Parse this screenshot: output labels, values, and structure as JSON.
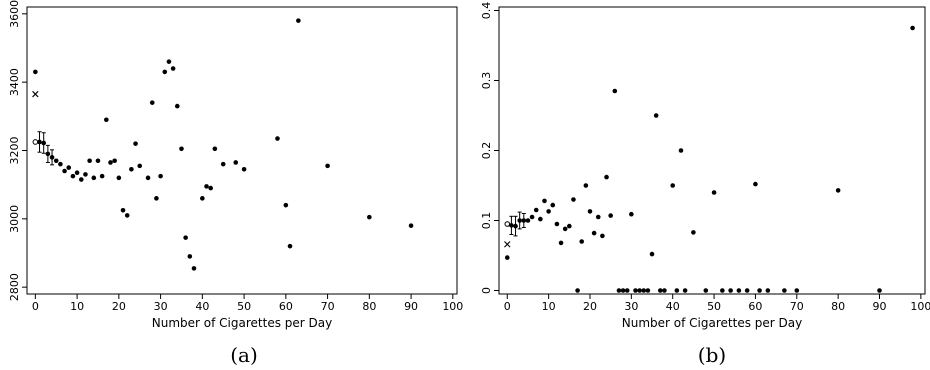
{
  "chart_data": [
    {
      "type": "scatter",
      "panel_label": "(a)",
      "xlabel": "Number of Cigarettes per Day",
      "ylabel": "",
      "xlim": [
        -2,
        101
      ],
      "ylim": [
        2780,
        3620
      ],
      "x_ticks": [
        0,
        10,
        20,
        30,
        40,
        50,
        60,
        70,
        80,
        90,
        100
      ],
      "y_ticks": [
        2800,
        3000,
        3200,
        3400,
        3600
      ],
      "points": [
        [
          0,
          3430
        ],
        [
          1,
          3225
        ],
        [
          2,
          3222
        ],
        [
          3,
          3190
        ],
        [
          4,
          3180
        ],
        [
          5,
          3170
        ],
        [
          6,
          3160
        ],
        [
          7,
          3140
        ],
        [
          8,
          3150
        ],
        [
          9,
          3125
        ],
        [
          10,
          3135
        ],
        [
          11,
          3115
        ],
        [
          12,
          3130
        ],
        [
          13,
          3170
        ],
        [
          14,
          3120
        ],
        [
          15,
          3170
        ],
        [
          16,
          3125
        ],
        [
          17,
          3290
        ],
        [
          18,
          3165
        ],
        [
          19,
          3170
        ],
        [
          20,
          3120
        ],
        [
          21,
          3025
        ],
        [
          22,
          3010
        ],
        [
          23,
          3145
        ],
        [
          24,
          3220
        ],
        [
          25,
          3155
        ],
        [
          27,
          3120
        ],
        [
          28,
          3340
        ],
        [
          29,
          3060
        ],
        [
          30,
          3125
        ],
        [
          31,
          3430
        ],
        [
          32,
          3460
        ],
        [
          33,
          3440
        ],
        [
          34,
          3330
        ],
        [
          35,
          3205
        ],
        [
          36,
          2945
        ],
        [
          37,
          2890
        ],
        [
          38,
          2855
        ],
        [
          40,
          3060
        ],
        [
          41,
          3095
        ],
        [
          42,
          3090
        ],
        [
          43,
          3205
        ],
        [
          45,
          3160
        ],
        [
          48,
          3165
        ],
        [
          50,
          3145
        ],
        [
          58,
          3235
        ],
        [
          60,
          3040
        ],
        [
          61,
          2920
        ],
        [
          63,
          3580
        ],
        [
          70,
          3155
        ],
        [
          80,
          3005
        ],
        [
          90,
          2980
        ]
      ],
      "open_points": [
        [
          0,
          3225
        ]
      ],
      "cross_points": [
        [
          0,
          3365
        ]
      ],
      "error_bars": [
        {
          "x": 1,
          "y": 3225,
          "low": 3195,
          "high": 3255
        },
        {
          "x": 2,
          "y": 3222,
          "low": 3192,
          "high": 3252
        },
        {
          "x": 3,
          "y": 3190,
          "low": 3165,
          "high": 3215
        },
        {
          "x": 4,
          "y": 3180,
          "low": 3158,
          "high": 3202
        }
      ]
    },
    {
      "type": "scatter",
      "panel_label": "(b)",
      "xlabel": "Number of Cigarettes per Day",
      "ylabel": "",
      "xlim": [
        -2,
        101
      ],
      "ylim": [
        -0.005,
        0.405
      ],
      "x_ticks": [
        0,
        10,
        20,
        30,
        40,
        50,
        60,
        70,
        80,
        90,
        100
      ],
      "y_ticks": [
        0,
        0.1,
        0.2,
        0.3,
        0.4
      ],
      "y_tick_labels": [
        "0",
        "0.1",
        "0.2",
        "0.3",
        "0.4"
      ],
      "points": [
        [
          0,
          0.047
        ],
        [
          1,
          0.093
        ],
        [
          2,
          0.092
        ],
        [
          3,
          0.1
        ],
        [
          4,
          0.1
        ],
        [
          5,
          0.1
        ],
        [
          6,
          0.105
        ],
        [
          7,
          0.115
        ],
        [
          8,
          0.102
        ],
        [
          9,
          0.128
        ],
        [
          10,
          0.113
        ],
        [
          11,
          0.122
        ],
        [
          12,
          0.095
        ],
        [
          13,
          0.068
        ],
        [
          14,
          0.088
        ],
        [
          15,
          0.092
        ],
        [
          16,
          0.13
        ],
        [
          17,
          0.0
        ],
        [
          18,
          0.07
        ],
        [
          19,
          0.15
        ],
        [
          20,
          0.113
        ],
        [
          21,
          0.082
        ],
        [
          22,
          0.105
        ],
        [
          23,
          0.078
        ],
        [
          24,
          0.162
        ],
        [
          25,
          0.107
        ],
        [
          26,
          0.285
        ],
        [
          27,
          0.0
        ],
        [
          28,
          0.0
        ],
        [
          29,
          0.0
        ],
        [
          30,
          0.109
        ],
        [
          31,
          0.0
        ],
        [
          32,
          0.0
        ],
        [
          33,
          0.0
        ],
        [
          34,
          0.0
        ],
        [
          35,
          0.052
        ],
        [
          36,
          0.25
        ],
        [
          37,
          0.0
        ],
        [
          38,
          0.0
        ],
        [
          40,
          0.15
        ],
        [
          41,
          0.0
        ],
        [
          42,
          0.2
        ],
        [
          43,
          0.0
        ],
        [
          45,
          0.083
        ],
        [
          48,
          0.0
        ],
        [
          50,
          0.14
        ],
        [
          52,
          0.0
        ],
        [
          54,
          0.0
        ],
        [
          56,
          0.0
        ],
        [
          58,
          0.0
        ],
        [
          60,
          0.152
        ],
        [
          61,
          0.0
        ],
        [
          63,
          0.0
        ],
        [
          67,
          0.0
        ],
        [
          70,
          0.0
        ],
        [
          80,
          0.143
        ],
        [
          90,
          0.0
        ],
        [
          98,
          0.375
        ]
      ],
      "open_points": [
        [
          0,
          0.095
        ]
      ],
      "cross_points": [
        [
          0,
          0.066
        ]
      ],
      "error_bars": [
        {
          "x": 1,
          "y": 0.093,
          "low": 0.08,
          "high": 0.106
        },
        {
          "x": 2,
          "y": 0.092,
          "low": 0.078,
          "high": 0.106
        },
        {
          "x": 3,
          "y": 0.1,
          "low": 0.088,
          "high": 0.112
        },
        {
          "x": 4,
          "y": 0.1,
          "low": 0.09,
          "high": 0.11
        }
      ]
    }
  ]
}
